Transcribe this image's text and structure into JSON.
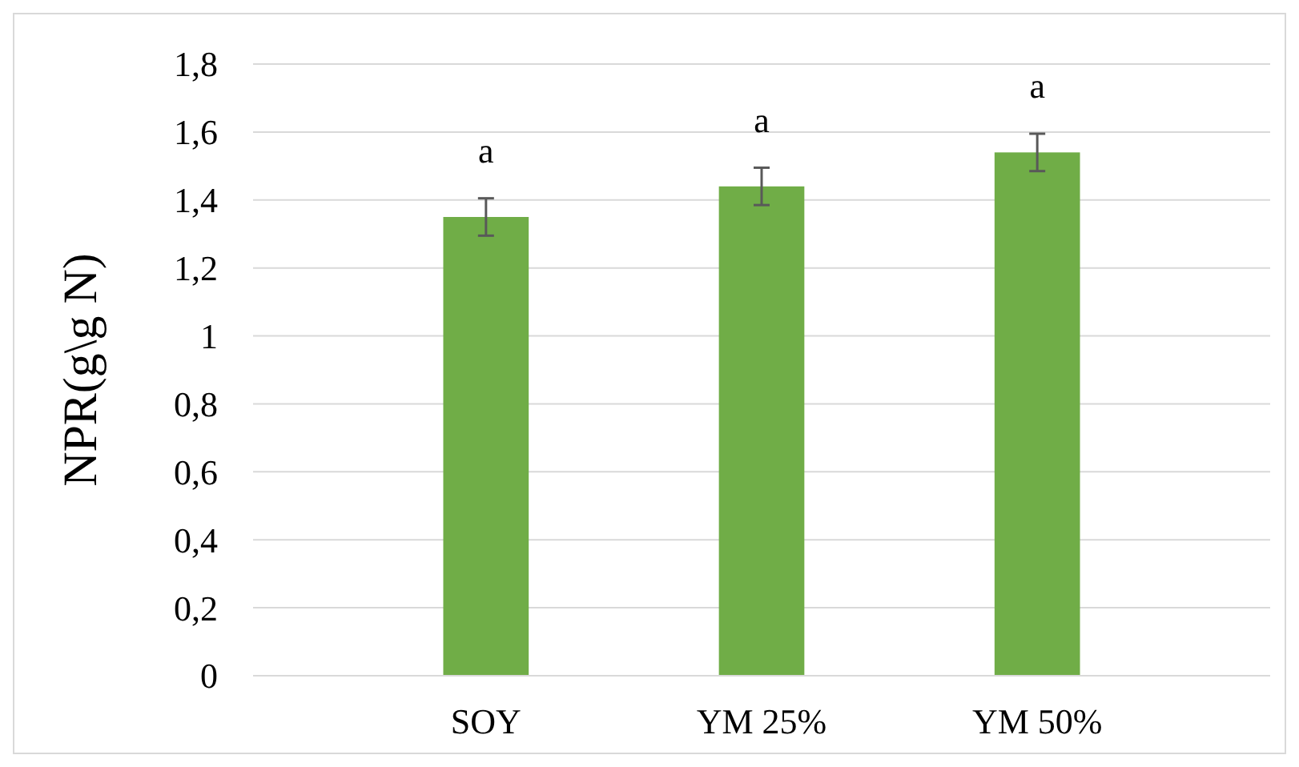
{
  "chart_data": {
    "type": "bar",
    "ylabel": "NPR(g\\g N)",
    "categories": [
      "SOY",
      "YM 25%",
      "YM 50%"
    ],
    "values": [
      1.35,
      1.44,
      1.54
    ],
    "color": "#70ad47",
    "errors": [
      0.055,
      0.055,
      0.055
    ],
    "ylim": [
      0,
      1.8
    ],
    "yticks": [
      {
        "value": 0,
        "label": "0"
      },
      {
        "value": 0.2,
        "label": "0,2"
      },
      {
        "value": 0.4,
        "label": "0,4"
      },
      {
        "value": 0.6,
        "label": "0,6"
      },
      {
        "value": 0.8,
        "label": "0,8"
      },
      {
        "value": 1,
        "label": "1"
      },
      {
        "value": 1.2,
        "label": "1,2"
      },
      {
        "value": 1.4,
        "label": "1,4"
      },
      {
        "value": 1.6,
        "label": "1,6"
      },
      {
        "value": 1.8,
        "label": "1,8"
      }
    ],
    "grid": "y",
    "annotations": [
      "a",
      "a",
      "a"
    ]
  }
}
